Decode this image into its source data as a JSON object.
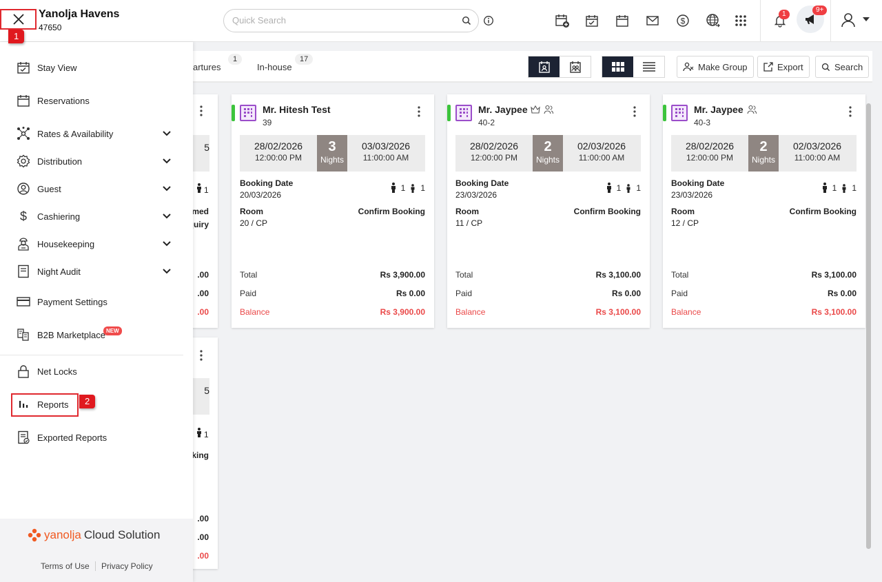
{
  "header": {
    "hotel_name": "Yanolja Havens",
    "hotel_id": "47650",
    "search_placeholder": "Quick Search",
    "notification_count": "1",
    "announcement_count": "9+"
  },
  "steps": {
    "step1": "1",
    "step2": "2"
  },
  "toolbar": {
    "tabs": [
      {
        "label": "artures",
        "count": "1"
      },
      {
        "label": "In-house",
        "count": "17"
      }
    ],
    "make_group_label": "Make Group",
    "export_label": "Export",
    "search_label": "Search"
  },
  "sidebar": {
    "items": [
      {
        "label": "Stay View",
        "icon": "calendar-check-icon"
      },
      {
        "label": "Reservations",
        "icon": "calendar-icon"
      },
      {
        "label": "Rates & Availability",
        "icon": "network-icon"
      },
      {
        "label": "Distribution",
        "icon": "gear-icon"
      },
      {
        "label": "Guest",
        "icon": "guest-icon"
      },
      {
        "label": "Cashiering",
        "icon": "dollar-icon"
      },
      {
        "label": "Housekeeping",
        "icon": "housekeeper-icon"
      },
      {
        "label": "Night Audit",
        "icon": "document-icon"
      },
      {
        "label": "Payment Settings",
        "icon": "card-icon"
      },
      {
        "label": "B2B Marketplace",
        "icon": "marketplace-icon"
      },
      {
        "label": "Net Locks",
        "icon": "lock-icon"
      },
      {
        "label": "Reports",
        "icon": "bar-chart-icon"
      },
      {
        "label": "Exported Reports",
        "icon": "exported-report-icon"
      }
    ],
    "new_badge": "NEW",
    "brand_part1": "yanolja",
    "brand_part2": "Cloud Solution",
    "terms_label": "Terms of Use",
    "privacy_label": "Privacy Policy"
  },
  "cards": [
    {
      "guest": "Mr. Hitesh Test",
      "room_no": "39",
      "checkin_date": "28/02/2026",
      "checkin_time": "12:00:00 PM",
      "nights": "3",
      "nights_label": "Nights",
      "checkout_date": "03/03/2026",
      "checkout_time": "11:00:00 AM",
      "booking_date_label": "Booking Date",
      "booking_date": "20/03/2026",
      "adults": "1",
      "children": "1",
      "room_label": "Room",
      "room": "20 / CP",
      "status": "Confirm Booking",
      "total_label": "Total",
      "total": "Rs 3,900.00",
      "paid_label": "Paid",
      "paid": "Rs 0.00",
      "balance_label": "Balance",
      "balance": "Rs 3,900.00"
    },
    {
      "guest": "Mr. Jaypee",
      "room_no": "40-2",
      "checkin_date": "28/02/2026",
      "checkin_time": "12:00:00 PM",
      "nights": "2",
      "nights_label": "Nights",
      "checkout_date": "02/03/2026",
      "checkout_time": "11:00:00 AM",
      "booking_date_label": "Booking Date",
      "booking_date": "23/03/2026",
      "adults": "1",
      "children": "1",
      "room_label": "Room",
      "room": "11 / CP",
      "status": "Confirm Booking",
      "total_label": "Total",
      "total": "Rs 3,100.00",
      "paid_label": "Paid",
      "paid": "Rs 0.00",
      "balance_label": "Balance",
      "balance": "Rs 3,100.00"
    },
    {
      "guest": "Mr. Jaypee",
      "room_no": "40-3",
      "checkin_date": "28/02/2026",
      "checkin_time": "12:00:00 PM",
      "nights": "2",
      "nights_label": "Nights",
      "checkout_date": "02/03/2026",
      "checkout_time": "11:00:00 AM",
      "booking_date_label": "Booking Date",
      "booking_date": "23/03/2026",
      "adults": "1",
      "children": "1",
      "room_label": "Room",
      "room": "12 / CP",
      "status": "Confirm Booking",
      "total_label": "Total",
      "total": "Rs 3,100.00",
      "paid_label": "Paid",
      "paid": "Rs 0.00",
      "balance_label": "Balance",
      "balance": "Rs 3,100.00"
    }
  ],
  "partial_cards": {
    "top": {
      "digit": "5",
      "pax": "1",
      "line1": "med",
      "line2": "quiry",
      "total": ".00",
      "paid": ".00",
      "balance": ".00"
    },
    "bottom": {
      "digit": "5",
      "pax": "1",
      "line1": "king",
      "total": ".00",
      "paid": ".00",
      "balance": ".00"
    }
  },
  "colors": {
    "accent": "#e0282e",
    "nav_active": "#1c2333",
    "status_green": "#3cc43c",
    "balance_red": "#ea4848",
    "brand_orange": "#f05a22"
  }
}
